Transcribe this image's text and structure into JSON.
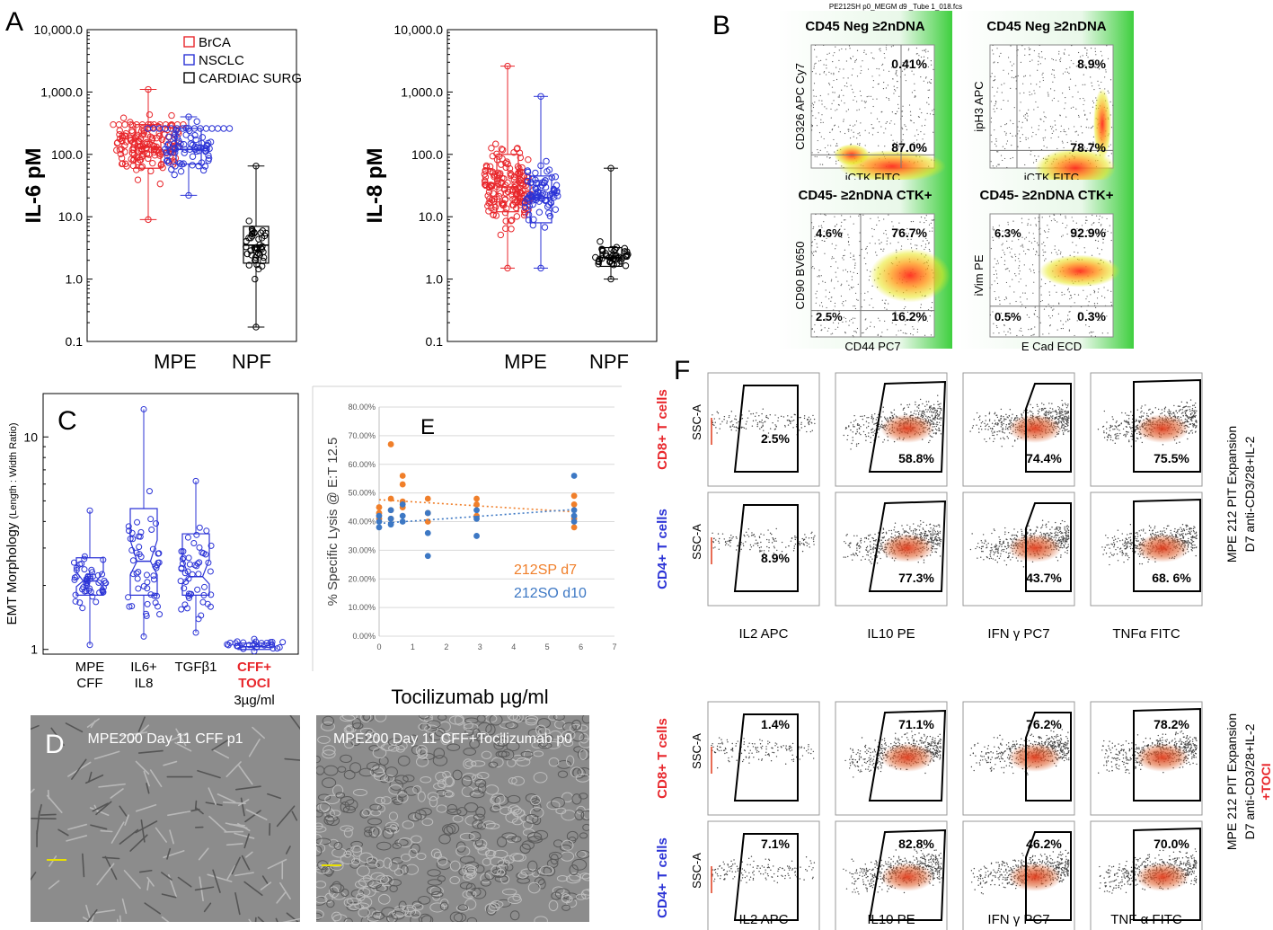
{
  "panel_letters": {
    "A": "A",
    "B": "B",
    "C": "C",
    "D": "D",
    "E": "E",
    "F": "F"
  },
  "chart_data": [
    {
      "id": "il6",
      "type": "scatter",
      "title": "",
      "ylabel": "IL-6 pM",
      "yscale": "log",
      "ylim": [
        0.1,
        10000
      ],
      "yticks": [
        "0.1",
        "1.0",
        "10.0",
        "100.0",
        "1,000.0",
        "10,000.0"
      ],
      "categories": [
        "MPE",
        "NPF"
      ],
      "legend": [
        "BrCA",
        "NSCLC",
        "CARDIAC SURG"
      ],
      "legend_colors": [
        "#e8262b",
        "#2b33d6",
        "#000000"
      ],
      "series": [
        {
          "name": "BrCA",
          "category": "MPE",
          "median": 130,
          "q1": 60,
          "q3": 300,
          "min": 9,
          "max": 1100,
          "color": "#e8262b"
        },
        {
          "name": "NSCLC",
          "category": "MPE",
          "median": 120,
          "q1": 70,
          "q3": 260,
          "min": 22,
          "max": 400,
          "color": "#2b33d6"
        },
        {
          "name": "CARDIAC SURG",
          "category": "NPF",
          "median": 3.5,
          "q1": 1.8,
          "q3": 7,
          "min": 0.17,
          "max": 65,
          "color": "#000000"
        }
      ]
    },
    {
      "id": "il8",
      "type": "scatter",
      "ylabel": "IL-8 pM",
      "yscale": "log",
      "ylim": [
        0.1,
        10000
      ],
      "yticks": [
        "0.1",
        "1.0",
        "10.0",
        "100.0",
        "1,000.0",
        "10,000.0"
      ],
      "categories": [
        "MPE",
        "NPF"
      ],
      "series": [
        {
          "name": "BrCA",
          "category": "MPE",
          "median": 30,
          "q1": 12,
          "q3": 100,
          "min": 1.5,
          "max": 2600,
          "color": "#e8262b"
        },
        {
          "name": "NSCLC",
          "category": "MPE",
          "median": 20,
          "q1": 8,
          "q3": 45,
          "min": 1.5,
          "max": 850,
          "color": "#2b33d6"
        },
        {
          "name": "CARDIAC SURG",
          "category": "NPF",
          "median": 2.2,
          "q1": 1.6,
          "q3": 3.2,
          "min": 1.0,
          "max": 60,
          "color": "#000000"
        }
      ]
    },
    {
      "id": "emt",
      "type": "scatter",
      "ylabel": "EMT Morphology",
      "ylabel_small": "(Length : Width Ratio)",
      "yscale": "log",
      "ylim": [
        0.95,
        16
      ],
      "yticks": [
        "1",
        "10"
      ],
      "categories": [
        "MPE\nCFF",
        "IL6+\nIL8",
        "TGFβ1",
        "CFF+\nTOCI"
      ],
      "dose_label": "3µg/ml",
      "boxes": [
        {
          "median": 2.1,
          "q1": 1.8,
          "q3": 2.7,
          "min": 1.05,
          "max": 4.5
        },
        {
          "median": 2.6,
          "q1": 1.8,
          "q3": 4.6,
          "min": 1.15,
          "max": 13.5
        },
        {
          "median": 2.2,
          "q1": 1.8,
          "q3": 3.5,
          "min": 1.2,
          "max": 6.2
        },
        {
          "median": 1.03,
          "q1": 1.0,
          "q3": 1.07,
          "min": 0.98,
          "max": 1.12
        }
      ]
    },
    {
      "id": "lysis",
      "type": "scatter",
      "title": "E",
      "ylabel": "% Specific Lysis @ E:T 12.5",
      "xlabel": "Tocilizumab µg/ml",
      "xlim": [
        0,
        7
      ],
      "ylim": [
        0,
        80
      ],
      "xticks": [
        "0",
        "1",
        "2",
        "3",
        "4",
        "5",
        "6",
        "7"
      ],
      "yticks": [
        "0.00%",
        "10.00%",
        "20.00%",
        "30.00%",
        "40.00%",
        "50.00%",
        "60.00%",
        "70.00%",
        "80.00%"
      ],
      "series": [
        {
          "name": "212SP d7",
          "color": "#f07f2a",
          "x": [
            0,
            0,
            0,
            0.35,
            0.35,
            0.35,
            0.35,
            0.7,
            0.7,
            0.7,
            0.7,
            1.45,
            1.45,
            1.45,
            2.9,
            2.9,
            2.9,
            5.8,
            5.8,
            5.8,
            5.8
          ],
          "y": [
            41,
            43,
            45,
            67,
            48,
            44,
            41,
            56,
            53,
            47,
            45,
            48,
            43,
            40,
            48,
            46,
            42,
            49,
            46,
            41,
            38
          ]
        },
        {
          "name": "212SO d10",
          "color": "#3d78c4",
          "x": [
            0,
            0,
            0,
            0.35,
            0.35,
            0.35,
            0.7,
            0.7,
            0.7,
            1.45,
            1.45,
            1.45,
            2.9,
            2.9,
            2.9,
            5.8,
            5.8,
            5.8,
            5.8
          ],
          "y": [
            42,
            40,
            38,
            44,
            41,
            39,
            46,
            42,
            40,
            43,
            36,
            28,
            44,
            41,
            35,
            56,
            44,
            42,
            40
          ]
        }
      ]
    }
  ],
  "panelB": {
    "filename": "PE212SH p0_MEGM  d9 _Tube 1_018.fcs",
    "plots": [
      {
        "title": "CD45 Neg ≥2nDNA",
        "ylabel": "CD326 APC Cy7",
        "xlabel": "iCTK FITC",
        "q_ur": "0.41%",
        "q_lr": "87.0%"
      },
      {
        "title": "CD45 Neg ≥2nDNA",
        "ylabel": "ipH3 APC",
        "xlabel": "iCTK FITC",
        "q_ur": "8.9%",
        "q_lr": "78.7%"
      },
      {
        "title": "CD45- ≥2nDNA CTK+",
        "ylabel": "CD90 BV650",
        "xlabel": "CD44 PC7",
        "q_ul": "4.6%",
        "q_ur": "76.7%",
        "q_ll": "2.5%",
        "q_lr": "16.2%"
      },
      {
        "title": "CD45- ≥2nDNA CTK+",
        "ylabel": "iVim PE",
        "xlabel": "E Cad ECD",
        "q_ul": "6.3%",
        "q_ur": "92.9%",
        "q_ll": "0.5%",
        "q_lr": "0.3%"
      }
    ]
  },
  "panelD": {
    "left_caption": "MPE200 Day 11 CFF p1",
    "right_caption": "MPE200 Day 11 CFF+Tocilizumab p0"
  },
  "panelF": {
    "ssc_label": "SSC-A",
    "x_labels_top": [
      "IL2 APC",
      "IL10 PE",
      "IFN γ PC7",
      "TNFα FITC"
    ],
    "x_labels_bottom": [
      "IL2 APC",
      "IL10 PE",
      "IFN γ PC7",
      "TNF α FITC"
    ],
    "row_labels": [
      "CD8+ T cells",
      "CD4+ T cells",
      "CD8+ T cells",
      "CD4+ T cells"
    ],
    "row_colors": [
      "#e8262b",
      "#2b33d6",
      "#e8262b",
      "#2b33d6"
    ],
    "values": [
      [
        "2.5%",
        "58.8%",
        "74.4%",
        "75.5%"
      ],
      [
        "8.9%",
        "77.3%",
        "43.7%",
        "68. 6%"
      ],
      [
        "1.4%",
        "71.1%",
        "76.2%",
        "78.2%"
      ],
      [
        "7.1%",
        "82.8%",
        "46.2%",
        "70.0%"
      ]
    ],
    "side_top_1": "MPE 212 PIT Expansion",
    "side_top_2": "D7 anti-CD3/28+IL-2",
    "side_bottom_1": "MPE 212 PIT Expansion",
    "side_bottom_2": "D7 anti-CD3/28+IL-2",
    "side_bottom_3": "+TOCI"
  }
}
